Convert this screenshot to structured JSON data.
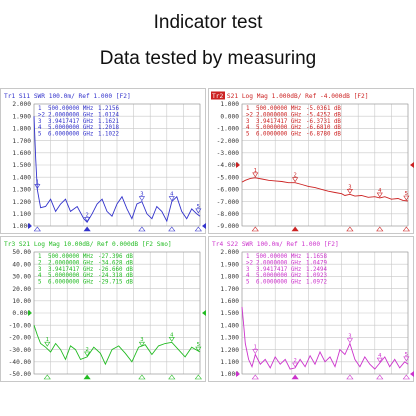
{
  "page": {
    "title": "Indicator test",
    "subtitle": "Data tested by measuring"
  },
  "chart_data": [
    {
      "type": "line",
      "header": "Tr1 S11  SWR 100.0m/ Ref 1.000 [F2]",
      "trace_tag": "Tr1",
      "header_rest": "S11  SWR 100.0m/ Ref 1.000 [F2]",
      "color": "#3333cc",
      "yticks": [
        "2.000",
        "1.900",
        "1.800",
        "1.700",
        "1.600",
        "1.500",
        "1.400",
        "1.300",
        "1.200",
        "1.100",
        "1.000"
      ],
      "ylim": [
        1.0,
        2.0
      ],
      "ref_value": 1.0,
      "markers": [
        {
          "id": "1",
          "freq": "500.00000 MHz",
          "value": "1.2156"
        },
        {
          "id": ">2",
          "freq": "2.0000000 GHz",
          "value": "1.0124"
        },
        {
          "id": "3",
          "freq": "3.9417417 GHz",
          "value": "1.1621"
        },
        {
          "id": "4",
          "freq": "5.0000000 GHz",
          "value": "1.2018"
        },
        {
          "id": "5",
          "freq": "6.0000000 GHz",
          "value": "1.1022"
        }
      ],
      "marker_x": [
        0.02,
        0.32,
        0.65,
        0.83,
        0.99
      ],
      "trace": [
        [
          0,
          1.9
        ],
        [
          0.01,
          1.55
        ],
        [
          0.02,
          1.3
        ],
        [
          0.04,
          1.15
        ],
        [
          0.07,
          1.16
        ],
        [
          0.1,
          1.22
        ],
        [
          0.13,
          1.12
        ],
        [
          0.16,
          1.18
        ],
        [
          0.19,
          1.22
        ],
        [
          0.22,
          1.12
        ],
        [
          0.26,
          1.16
        ],
        [
          0.3,
          1.06
        ],
        [
          0.32,
          1.03
        ],
        [
          0.35,
          1.1
        ],
        [
          0.38,
          1.18
        ],
        [
          0.41,
          1.22
        ],
        [
          0.44,
          1.12
        ],
        [
          0.47,
          1.08
        ],
        [
          0.5,
          1.18
        ],
        [
          0.53,
          1.24
        ],
        [
          0.56,
          1.14
        ],
        [
          0.59,
          1.06
        ],
        [
          0.62,
          1.18
        ],
        [
          0.65,
          1.2
        ],
        [
          0.68,
          1.1
        ],
        [
          0.71,
          1.06
        ],
        [
          0.74,
          1.16
        ],
        [
          0.77,
          1.12
        ],
        [
          0.8,
          1.04
        ],
        [
          0.83,
          1.2
        ],
        [
          0.86,
          1.24
        ],
        [
          0.89,
          1.12
        ],
        [
          0.92,
          1.06
        ],
        [
          0.95,
          1.14
        ],
        [
          0.98,
          1.1
        ],
        [
          1.0,
          1.08
        ]
      ]
    },
    {
      "type": "line",
      "header": "Tr2 S21  Log Mag 1.000dB/ Ref -4.000dB [F2]",
      "trace_tag": "Tr2",
      "header_rest": "S21  Log Mag 1.000dB/ Ref -4.000dB [F2]",
      "color": "#cc2222",
      "yticks": [
        "1.000",
        "0.000",
        "-1.000",
        "-2.000",
        "-3.000",
        "-4.000",
        "-5.000",
        "-6.000",
        "-7.000",
        "-8.000",
        "-9.000"
      ],
      "ylim": [
        -9.0,
        1.0
      ],
      "ref_value": -4.0,
      "markers": [
        {
          "id": "1",
          "freq": "500.00000 MHz",
          "value": "-5.0361 dB"
        },
        {
          "id": ">2",
          "freq": "2.0000000 GHz",
          "value": "-5.4252 dB"
        },
        {
          "id": "3",
          "freq": "3.9417417 GHz",
          "value": "-6.3731 dB"
        },
        {
          "id": "4",
          "freq": "5.0000000 GHz",
          "value": "-6.6810 dB"
        },
        {
          "id": "5",
          "freq": "6.0000000 GHz",
          "value": "-6.8780 dB"
        }
      ],
      "marker_x": [
        0.08,
        0.32,
        0.65,
        0.83,
        0.99
      ],
      "trace": [
        [
          0,
          -5.4
        ],
        [
          0.02,
          -5.25
        ],
        [
          0.05,
          -5.1
        ],
        [
          0.08,
          -5.05
        ],
        [
          0.12,
          -5.15
        ],
        [
          0.16,
          -5.25
        ],
        [
          0.2,
          -5.3
        ],
        [
          0.24,
          -5.35
        ],
        [
          0.28,
          -5.45
        ],
        [
          0.32,
          -5.45
        ],
        [
          0.36,
          -5.6
        ],
        [
          0.4,
          -5.75
        ],
        [
          0.44,
          -5.85
        ],
        [
          0.48,
          -6.0
        ],
        [
          0.52,
          -6.15
        ],
        [
          0.56,
          -6.25
        ],
        [
          0.6,
          -6.35
        ],
        [
          0.62,
          -6.5
        ],
        [
          0.65,
          -6.4
        ],
        [
          0.68,
          -6.55
        ],
        [
          0.72,
          -6.5
        ],
        [
          0.76,
          -6.65
        ],
        [
          0.8,
          -6.6
        ],
        [
          0.83,
          -6.7
        ],
        [
          0.86,
          -6.6
        ],
        [
          0.9,
          -6.8
        ],
        [
          0.94,
          -6.75
        ],
        [
          0.97,
          -6.9
        ],
        [
          1.0,
          -6.95
        ]
      ]
    },
    {
      "type": "line",
      "header": "Tr3 S21  Log Mag 10.00dB/ Ref 0.000dB [F2 Smo]",
      "trace_tag": "Tr3",
      "header_rest": "S21  Log Mag 10.00dB/ Ref 0.000dB [F2 Smo]",
      "color": "#22bb22",
      "yticks": [
        "50.00",
        "40.00",
        "30.00",
        "20.00",
        "10.00",
        "0.000",
        "-10.00",
        "-20.00",
        "-30.00",
        "-40.00",
        "-50.00"
      ],
      "ylim": [
        -50.0,
        50.0
      ],
      "ref_value": 0.0,
      "markers": [
        {
          "id": "1",
          "freq": "500.00000 MHz",
          "value": "-27.396 dB"
        },
        {
          "id": "2",
          "freq": "2.0000000 GHz",
          "value": "-34.628 dB"
        },
        {
          "id": "3",
          "freq": "3.9417417 GHz",
          "value": "-26.660 dB"
        },
        {
          "id": "4",
          "freq": "5.0000000 GHz",
          "value": "-24.318 dB"
        },
        {
          "id": "5",
          "freq": "6.0000000 GHz",
          "value": "-29.715 dB"
        }
      ],
      "marker_x": [
        0.08,
        0.32,
        0.65,
        0.83,
        0.99
      ],
      "trace": [
        [
          0,
          -10
        ],
        [
          0.02,
          -18
        ],
        [
          0.04,
          -25
        ],
        [
          0.07,
          -28
        ],
        [
          0.1,
          -32
        ],
        [
          0.13,
          -25
        ],
        [
          0.16,
          -30
        ],
        [
          0.19,
          -38
        ],
        [
          0.22,
          -27
        ],
        [
          0.25,
          -30
        ],
        [
          0.28,
          -38
        ],
        [
          0.32,
          -36
        ],
        [
          0.36,
          -28
        ],
        [
          0.4,
          -33
        ],
        [
          0.43,
          -42
        ],
        [
          0.47,
          -30
        ],
        [
          0.51,
          -27
        ],
        [
          0.55,
          -33
        ],
        [
          0.59,
          -40
        ],
        [
          0.63,
          -28
        ],
        [
          0.67,
          -26
        ],
        [
          0.71,
          -34
        ],
        [
          0.75,
          -27
        ],
        [
          0.79,
          -25
        ],
        [
          0.83,
          -24
        ],
        [
          0.87,
          -30
        ],
        [
          0.91,
          -36
        ],
        [
          0.95,
          -28
        ],
        [
          1.0,
          -32
        ]
      ]
    },
    {
      "type": "line",
      "header": "Tr4 S22  SWR 100.0m/ Ref 1.000 [F2]",
      "trace_tag": "Tr4",
      "header_rest": "S22  SWR 100.0m/ Ref 1.000 [F2]",
      "color": "#cc33cc",
      "yticks": [
        "2.000",
        "1.900",
        "1.800",
        "1.700",
        "1.600",
        "1.500",
        "1.400",
        "1.300",
        "1.200",
        "1.100",
        "1.000"
      ],
      "ylim": [
        1.0,
        2.0
      ],
      "ref_value": 1.0,
      "markers": [
        {
          "id": "1",
          "freq": "500.00000 MHz",
          "value": "1.1658"
        },
        {
          "id": ">2",
          "freq": "2.0000000 GHz",
          "value": "1.0479"
        },
        {
          "id": "3",
          "freq": "3.9417417 GHz",
          "value": "1.2494"
        },
        {
          "id": "4",
          "freq": "5.0000000 GHz",
          "value": "1.0923"
        },
        {
          "id": "5",
          "freq": "6.0000000 GHz",
          "value": "1.0972"
        }
      ],
      "marker_x": [
        0.08,
        0.32,
        0.65,
        0.83,
        0.99
      ],
      "trace": [
        [
          0,
          1.55
        ],
        [
          0.01,
          1.4
        ],
        [
          0.02,
          1.25
        ],
        [
          0.04,
          1.12
        ],
        [
          0.06,
          1.06
        ],
        [
          0.08,
          1.16
        ],
        [
          0.11,
          1.08
        ],
        [
          0.14,
          1.12
        ],
        [
          0.17,
          1.05
        ],
        [
          0.2,
          1.14
        ],
        [
          0.23,
          1.08
        ],
        [
          0.26,
          1.12
        ],
        [
          0.29,
          1.04
        ],
        [
          0.32,
          1.05
        ],
        [
          0.35,
          1.12
        ],
        [
          0.38,
          1.06
        ],
        [
          0.41,
          1.15
        ],
        [
          0.44,
          1.08
        ],
        [
          0.47,
          1.18
        ],
        [
          0.5,
          1.1
        ],
        [
          0.53,
          1.14
        ],
        [
          0.56,
          1.06
        ],
        [
          0.59,
          1.2
        ],
        [
          0.62,
          1.16
        ],
        [
          0.65,
          1.25
        ],
        [
          0.68,
          1.12
        ],
        [
          0.71,
          1.06
        ],
        [
          0.74,
          1.14
        ],
        [
          0.77,
          1.08
        ],
        [
          0.8,
          1.04
        ],
        [
          0.83,
          1.09
        ],
        [
          0.86,
          1.14
        ],
        [
          0.89,
          1.06
        ],
        [
          0.92,
          1.12
        ],
        [
          0.95,
          1.05
        ],
        [
          0.98,
          1.1
        ],
        [
          1.0,
          1.08
        ]
      ]
    }
  ]
}
